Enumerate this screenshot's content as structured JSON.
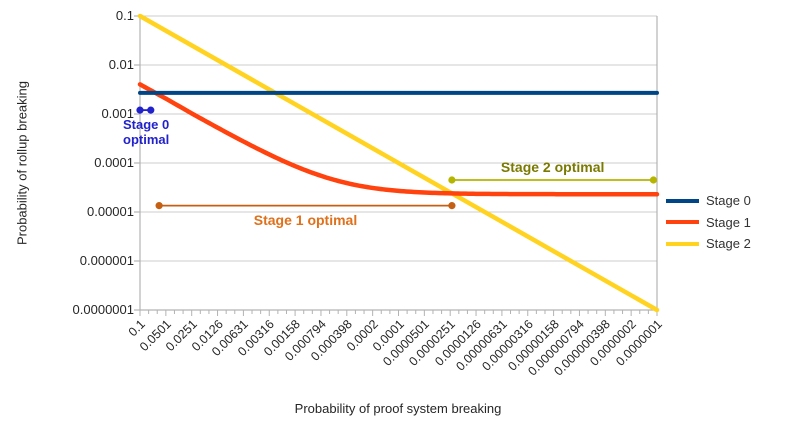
{
  "chart_data": {
    "type": "line",
    "title": "",
    "xlabel": "Probability of proof system breaking",
    "ylabel": "Probability of rollup breaking",
    "x_scale": "log",
    "y_scale": "log",
    "xlim": [
      0.1,
      1e-07
    ],
    "ylim": [
      0.1,
      1e-07
    ],
    "grid": "horizontal-major-only",
    "legend_position": "right",
    "x_ticks": [
      "0.1",
      "0.0501",
      "0.0251",
      "0.0126",
      "0.00631",
      "0.00316",
      "0.00158",
      "0.000794",
      "0.000398",
      "0.0002",
      "0.0001",
      "0.0000501",
      "0.0000251",
      "0.0000126",
      "0.00000631",
      "0.00000316",
      "0.00000158",
      "0.000000794",
      "0.000000398",
      "0.0000002",
      "0.0000001"
    ],
    "y_ticks": [
      "0.1",
      "0.01",
      "0.001",
      "0.0001",
      "0.00001",
      "0.000001",
      "0.0000001"
    ],
    "series": [
      {
        "name": "Stage 0",
        "color": "#004586",
        "interp": "pixel",
        "x": [
          0.1,
          1e-07
        ],
        "y": [
          0.0027,
          0.0027
        ]
      },
      {
        "name": "Stage 1",
        "color": "#ff420e",
        "interp": "linear",
        "x": [
          0.1,
          0.0501,
          0.0251,
          0.0126,
          0.00631,
          0.00316,
          0.00158,
          0.000794,
          0.000398,
          0.0002,
          0.0001,
          5.01e-05,
          2.51e-05,
          1.26e-05,
          6.31e-06,
          3.16e-06,
          1.58e-06,
          7.94e-07,
          3.98e-07,
          2e-07,
          1e-07
        ],
        "y": [
          0.004023,
          0.002063,
          0.001027,
          0.000527,
          0.0002754,
          0.0001494,
          8.62e-05,
          5.48e-05,
          3.89e-05,
          3.1e-05,
          2.7e-05,
          2.5e-05,
          2.4e-05,
          2.35e-05,
          2.33e-05,
          2.31e-05,
          2.31e-05,
          2.3e-05,
          2.3e-05,
          2.3e-05,
          2.3e-05
        ]
      },
      {
        "name": "Stage 2",
        "color": "#ffd320",
        "interp": "pixel",
        "x": [
          0.1,
          1e-07
        ],
        "y": [
          0.1,
          1e-07
        ]
      }
    ],
    "annotations": [
      {
        "id": "stage0-optimal",
        "label": "Stage 0 optimal",
        "y": 0.0012,
        "x_start": 0.1,
        "x_end": 0.075,
        "line_color": "#2222cc",
        "text_color": "#2222cc"
      },
      {
        "id": "stage1-optimal",
        "label": "Stage 1 optimal",
        "y": 1.35e-05,
        "x_start": 0.06,
        "x_end": 2.4e-05,
        "line_color": "#c55f11",
        "text_color": "#e0701a"
      },
      {
        "id": "stage2-optimal",
        "label": "Stage 2 optimal",
        "y": 4.5e-05,
        "x_start": 2.4e-05,
        "x_end": 1.1e-07,
        "line_color": "#b5b500",
        "text_color": "#7a7a00"
      }
    ],
    "legend": [
      {
        "label": "Stage 0",
        "color": "#004586"
      },
      {
        "label": "Stage 1",
        "color": "#ff420e"
      },
      {
        "label": "Stage 2",
        "color": "#ffd320"
      }
    ]
  }
}
